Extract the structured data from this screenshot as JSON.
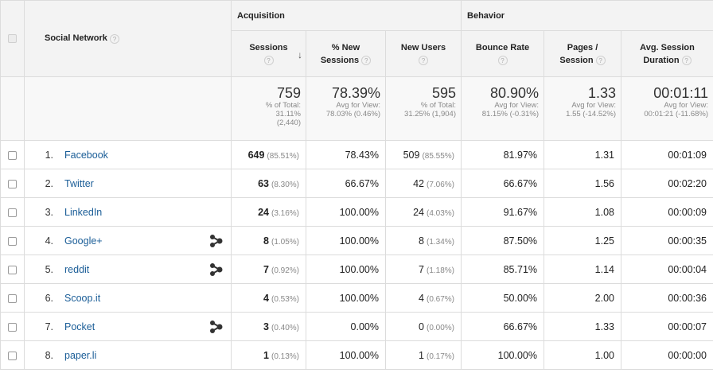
{
  "header": {
    "social_network": "Social Network",
    "groups": {
      "acquisition": "Acquisition",
      "behavior": "Behavior"
    },
    "columns": {
      "sessions": "Sessions",
      "pct_new_1": "% New",
      "pct_new_2": "Sessions",
      "new_users": "New Users",
      "bounce_rate": "Bounce Rate",
      "pages_1": "Pages /",
      "pages_2": "Session",
      "avg_1": "Avg. Session",
      "avg_2": "Duration"
    },
    "help_glyph": "?",
    "sort_glyph": "↓"
  },
  "totals": {
    "sessions": {
      "value": "759",
      "l1": "% of Total:",
      "l2": "31.11%",
      "l3": "(2,440)"
    },
    "pct_new": {
      "value": "78.39%",
      "l1": "Avg for View:",
      "l2": "78.03% (0.46%)"
    },
    "new_users": {
      "value": "595",
      "l1": "% of Total:",
      "l2": "31.25% (1,904)"
    },
    "bounce": {
      "value": "80.90%",
      "l1": "Avg for View:",
      "l2": "81.15% (-0.31%)"
    },
    "pages": {
      "value": "1.33",
      "l1": "Avg for View:",
      "l2": "1.55 (-14.52%)"
    },
    "duration": {
      "value": "00:01:11",
      "l1": "Avg for View:",
      "l2": "00:01:21 (-11.68%)"
    }
  },
  "rows": [
    {
      "idx": "1.",
      "name": "Facebook",
      "sessions": "649",
      "sessions_pct": "(85.51%)",
      "pct_new": "78.43%",
      "new_users": "509",
      "new_users_pct": "(85.55%)",
      "bounce": "81.97%",
      "pages": "1.31",
      "duration": "00:01:09"
    },
    {
      "idx": "2.",
      "name": "Twitter",
      "sessions": "63",
      "sessions_pct": "(8.30%)",
      "pct_new": "66.67%",
      "new_users": "42",
      "new_users_pct": "(7.06%)",
      "bounce": "66.67%",
      "pages": "1.56",
      "duration": "00:02:20"
    },
    {
      "idx": "3.",
      "name": "LinkedIn",
      "sessions": "24",
      "sessions_pct": "(3.16%)",
      "pct_new": "100.00%",
      "new_users": "24",
      "new_users_pct": "(4.03%)",
      "bounce": "91.67%",
      "pages": "1.08",
      "duration": "00:00:09"
    },
    {
      "idx": "4.",
      "name": "Google+",
      "sessions": "8",
      "sessions_pct": "(1.05%)",
      "pct_new": "100.00%",
      "new_users": "8",
      "new_users_pct": "(1.34%)",
      "bounce": "87.50%",
      "pages": "1.25",
      "duration": "00:00:35"
    },
    {
      "idx": "5.",
      "name": "reddit",
      "sessions": "7",
      "sessions_pct": "(0.92%)",
      "pct_new": "100.00%",
      "new_users": "7",
      "new_users_pct": "(1.18%)",
      "bounce": "85.71%",
      "pages": "1.14",
      "duration": "00:00:04"
    },
    {
      "idx": "6.",
      "name": "Scoop.it",
      "sessions": "4",
      "sessions_pct": "(0.53%)",
      "pct_new": "100.00%",
      "new_users": "4",
      "new_users_pct": "(0.67%)",
      "bounce": "50.00%",
      "pages": "2.00",
      "duration": "00:00:36"
    },
    {
      "idx": "7.",
      "name": "Pocket",
      "sessions": "3",
      "sessions_pct": "(0.40%)",
      "pct_new": "0.00%",
      "new_users": "0",
      "new_users_pct": "(0.00%)",
      "bounce": "66.67%",
      "pages": "1.33",
      "duration": "00:00:07"
    },
    {
      "idx": "8.",
      "name": "paper.li",
      "sessions": "1",
      "sessions_pct": "(0.13%)",
      "pct_new": "100.00%",
      "new_users": "1",
      "new_users_pct": "(0.17%)",
      "bounce": "100.00%",
      "pages": "1.00",
      "duration": "00:00:00"
    }
  ],
  "icons": {
    "network_icon": "social-network-graph-icon"
  }
}
